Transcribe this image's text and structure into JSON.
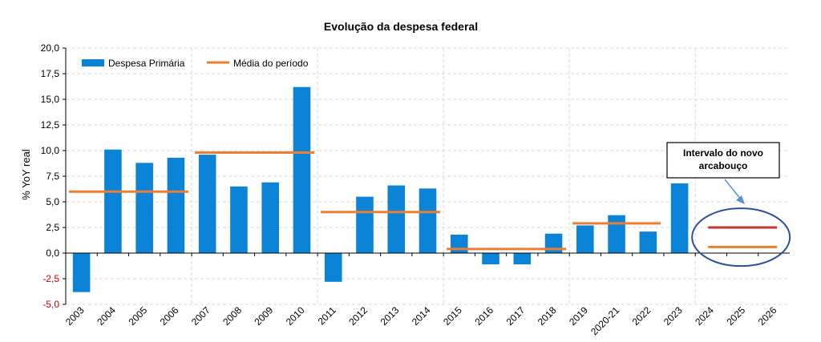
{
  "chart_data": {
    "type": "bar",
    "title": "Evolução da despesa federal",
    "ylabel": "% YoY real",
    "xlabel": "",
    "ylim": [
      -5,
      20
    ],
    "yticks": [
      "-5,0",
      "-2,5",
      "0,0",
      "2,5",
      "5,0",
      "7,5",
      "10,0",
      "12,5",
      "15,0",
      "17,5",
      "20,0"
    ],
    "ytick_values": [
      -5,
      -2.5,
      0,
      2.5,
      5,
      7.5,
      10,
      12.5,
      15,
      17.5,
      20
    ],
    "categories": [
      "2003",
      "2004",
      "2005",
      "2006",
      "2007",
      "2008",
      "2009",
      "2010",
      "2011",
      "2012",
      "2013",
      "2014",
      "2015",
      "2016",
      "2017",
      "2018",
      "2019",
      "2020-21",
      "2022",
      "2023",
      "2024",
      "2025",
      "2026"
    ],
    "legend": {
      "position": "top-left",
      "items": [
        {
          "label": "Despesa Primária",
          "color": "#0b84d8"
        },
        {
          "label": "Média do período",
          "color": "#ed7d31"
        }
      ]
    },
    "series": [
      {
        "name": "Despesa Primária",
        "color": "#0b84d8",
        "values": [
          -3.8,
          10.1,
          8.8,
          9.3,
          9.6,
          6.5,
          6.9,
          16.2,
          -2.8,
          5.5,
          6.6,
          6.3,
          1.8,
          -1.1,
          -1.1,
          1.9,
          2.7,
          3.7,
          2.1,
          6.8,
          null,
          null,
          null
        ]
      }
    ],
    "period_means": [
      {
        "from": "2003",
        "to": "2006",
        "value": 6.0,
        "color": "#ed7d31"
      },
      {
        "from": "2007",
        "to": "2010",
        "value": 9.8,
        "color": "#ed7d31"
      },
      {
        "from": "2011",
        "to": "2014",
        "value": 4.0,
        "color": "#ed7d31"
      },
      {
        "from": "2015",
        "to": "2018",
        "value": 0.4,
        "color": "#ed7d31"
      },
      {
        "from": "2019",
        "to": "2022",
        "value": 2.9,
        "color": "#ed7d31"
      }
    ],
    "arcabouco_range": {
      "from": "2024",
      "to": "2026",
      "upper": 2.5,
      "lower": 0.6,
      "upper_color": "#c0392b",
      "lower_color": "#ed7d31",
      "ellipse_color": "#2f4f9a"
    },
    "annotation": {
      "lines": [
        "Intervalo do novo",
        "arcabouço"
      ]
    },
    "negative_tick_color": "#d00000",
    "grid": "dashed-vertical"
  }
}
